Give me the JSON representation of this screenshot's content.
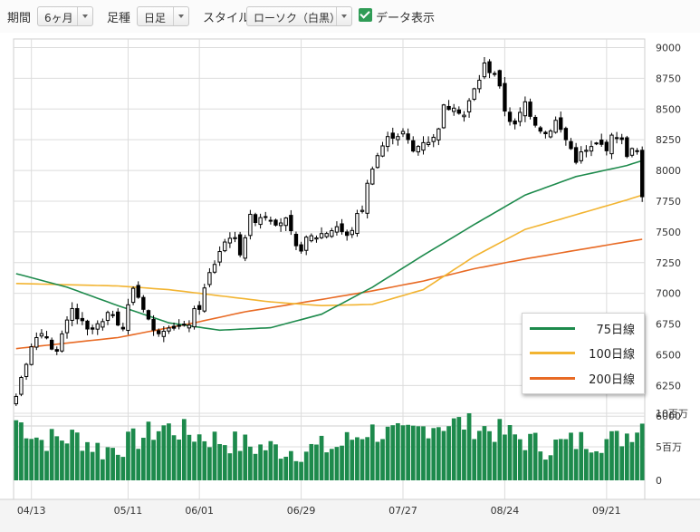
{
  "toolbar": {
    "period_label": "期間",
    "period_value": "6ヶ月",
    "interval_label": "足種",
    "interval_value": "日足",
    "style_label": "スタイル",
    "style_value": "ローソク（白黒）",
    "data_display_label": "データ表示",
    "data_display_checked": true
  },
  "legend": {
    "ma75": "75日線",
    "ma100": "100日線",
    "ma200": "200日線"
  },
  "colors": {
    "ma75": "#1d8a4c",
    "ma100": "#f2b431",
    "ma200": "#e86a24",
    "volume": "#1d8a4c",
    "candle": "#000000",
    "grid": "#dcdcdc"
  },
  "chart_data": {
    "type": "candlestick",
    "price_ticks": [
      "9000",
      "8750",
      "8500",
      "8250",
      "8000",
      "7750",
      "7500",
      "7250",
      "7000",
      "6750",
      "6500",
      "6250",
      "6000"
    ],
    "price_range": [
      5950,
      9070
    ],
    "volume_ticks": [
      "10百万",
      "5百万",
      "0"
    ],
    "volume_range": [
      0,
      10
    ],
    "x_labels": [
      {
        "label": "04/13",
        "day": 3
      },
      {
        "label": "05/11",
        "day": 22
      },
      {
        "label": "06/01",
        "day": 36
      },
      {
        "label": "06/29",
        "day": 56
      },
      {
        "label": "07/27",
        "day": 76
      },
      {
        "label": "08/24",
        "day": 96
      },
      {
        "label": "09/21",
        "day": 116
      }
    ],
    "days": 124,
    "anchors": [
      [
        0,
        6200
      ],
      [
        3,
        6600
      ],
      [
        6,
        6650
      ],
      [
        8,
        6520
      ],
      [
        11,
        6860
      ],
      [
        14,
        6680
      ],
      [
        17,
        6750
      ],
      [
        19,
        6850
      ],
      [
        21,
        6720
      ],
      [
        23,
        7050
      ],
      [
        25,
        6900
      ],
      [
        27,
        6680
      ],
      [
        30,
        6760
      ],
      [
        33,
        6700
      ],
      [
        36,
        6900
      ],
      [
        38,
        7150
      ],
      [
        40,
        7350
      ],
      [
        42,
        7480
      ],
      [
        44,
        7350
      ],
      [
        46,
        7600
      ],
      [
        49,
        7650
      ],
      [
        51,
        7600
      ],
      [
        53,
        7580
      ],
      [
        55,
        7350
      ],
      [
        58,
        7450
      ],
      [
        61,
        7500
      ],
      [
        63,
        7550
      ],
      [
        65,
        7450
      ],
      [
        68,
        7700
      ],
      [
        70,
        8050
      ],
      [
        72,
        8200
      ],
      [
        74,
        8300
      ],
      [
        76,
        8300
      ],
      [
        78,
        8150
      ],
      [
        80,
        8250
      ],
      [
        82,
        8250
      ],
      [
        84,
        8500
      ],
      [
        86,
        8550
      ],
      [
        88,
        8450
      ],
      [
        90,
        8650
      ],
      [
        92,
        8850
      ],
      [
        94,
        8800
      ],
      [
        96,
        8500
      ],
      [
        98,
        8350
      ],
      [
        100,
        8550
      ],
      [
        102,
        8400
      ],
      [
        104,
        8300
      ],
      [
        106,
        8400
      ],
      [
        108,
        8250
      ],
      [
        110,
        8100
      ],
      [
        112,
        8150
      ],
      [
        114,
        8200
      ],
      [
        116,
        8200
      ],
      [
        118,
        8300
      ],
      [
        120,
        8150
      ],
      [
        122,
        8150
      ],
      [
        123,
        7750
      ]
    ],
    "ma75": [
      [
        0,
        7160
      ],
      [
        10,
        7050
      ],
      [
        20,
        6900
      ],
      [
        30,
        6760
      ],
      [
        40,
        6700
      ],
      [
        50,
        6720
      ],
      [
        60,
        6830
      ],
      [
        70,
        7050
      ],
      [
        80,
        7310
      ],
      [
        90,
        7560
      ],
      [
        100,
        7800
      ],
      [
        110,
        7950
      ],
      [
        120,
        8040
      ],
      [
        123,
        8080
      ]
    ],
    "ma100": [
      [
        0,
        7080
      ],
      [
        20,
        7060
      ],
      [
        30,
        7030
      ],
      [
        40,
        6980
      ],
      [
        50,
        6930
      ],
      [
        60,
        6900
      ],
      [
        70,
        6910
      ],
      [
        80,
        7030
      ],
      [
        90,
        7300
      ],
      [
        100,
        7520
      ],
      [
        110,
        7640
      ],
      [
        120,
        7760
      ],
      [
        123,
        7800
      ]
    ],
    "ma200": [
      [
        0,
        6550
      ],
      [
        20,
        6640
      ],
      [
        35,
        6760
      ],
      [
        45,
        6850
      ],
      [
        60,
        6950
      ],
      [
        70,
        7020
      ],
      [
        80,
        7100
      ],
      [
        90,
        7200
      ],
      [
        100,
        7280
      ],
      [
        110,
        7350
      ],
      [
        120,
        7420
      ],
      [
        123,
        7440
      ]
    ],
    "volume_profile": [
      [
        0,
        9
      ],
      [
        5,
        6
      ],
      [
        12,
        6.5
      ],
      [
        17,
        4.5
      ],
      [
        22,
        5.5
      ],
      [
        29,
        8
      ],
      [
        34,
        7
      ],
      [
        40,
        6
      ],
      [
        47,
        5
      ],
      [
        55,
        4.5
      ],
      [
        63,
        5
      ],
      [
        69,
        7.5
      ],
      [
        76,
        6.5
      ],
      [
        82,
        8.5
      ],
      [
        88,
        8.5
      ],
      [
        96,
        7
      ],
      [
        104,
        5
      ],
      [
        112,
        6
      ],
      [
        118,
        6
      ],
      [
        123,
        8.5
      ]
    ]
  }
}
